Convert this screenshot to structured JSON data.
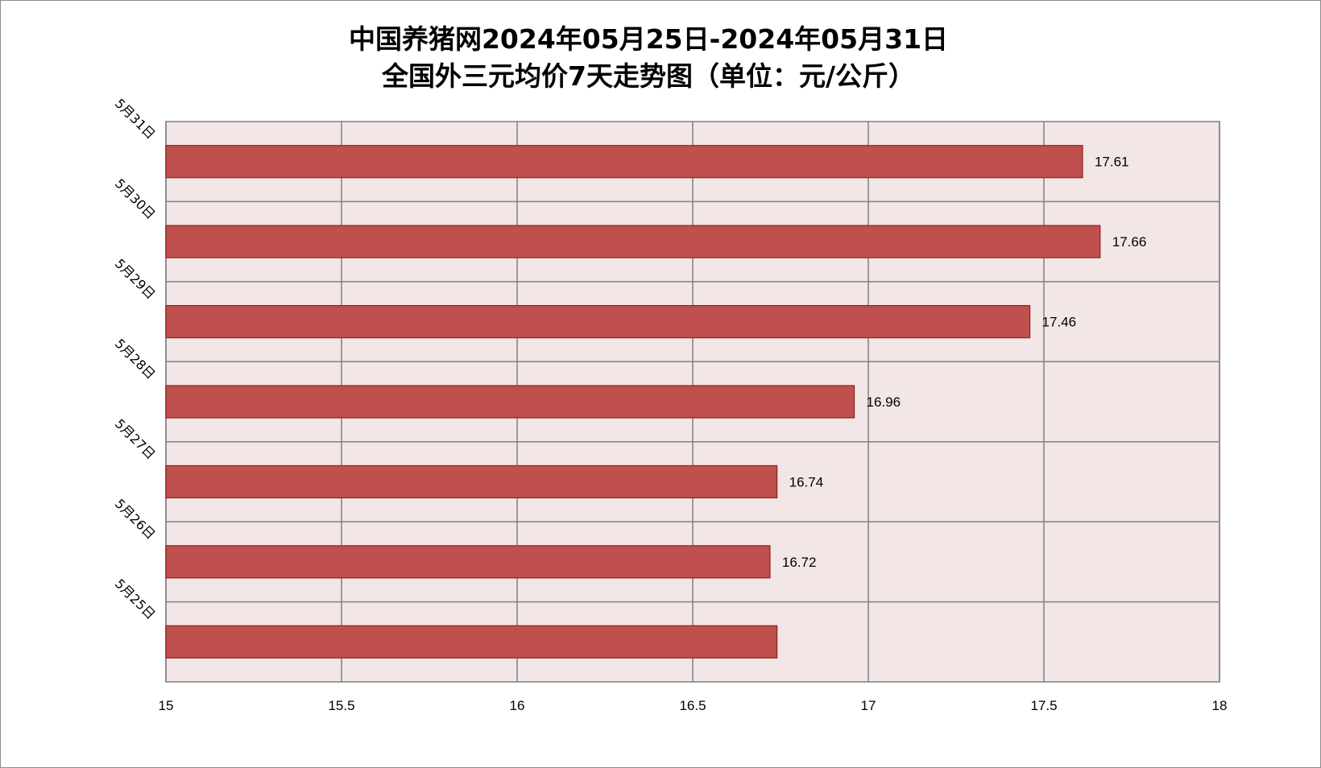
{
  "chart_data": {
    "type": "bar",
    "orientation": "horizontal",
    "title_lines": [
      "中国养猪网2024年05月25日-2024年05月31日",
      "全国外三元均价7天走势图（单位：元/公斤）"
    ],
    "categories": [
      "5月31日",
      "5月30日",
      "5月29日",
      "5月28日",
      "5月27日",
      "5月26日",
      "5月25日"
    ],
    "values": [
      17.61,
      17.66,
      17.46,
      16.96,
      16.74,
      16.72,
      16.74
    ],
    "data_labels": [
      "17.61",
      "17.66",
      "17.46",
      "16.96",
      "16.74",
      "16.72",
      ""
    ],
    "x_ticks": [
      "15",
      "15.5",
      "16",
      "16.5",
      "17",
      "17.5",
      "18"
    ],
    "xlim": [
      15,
      18
    ],
    "grid": true,
    "colors": {
      "bar_fill": "#c0504d",
      "bar_stroke": "#8b2323",
      "plot_background": "#f2e6e6",
      "grid": "#808080"
    }
  }
}
